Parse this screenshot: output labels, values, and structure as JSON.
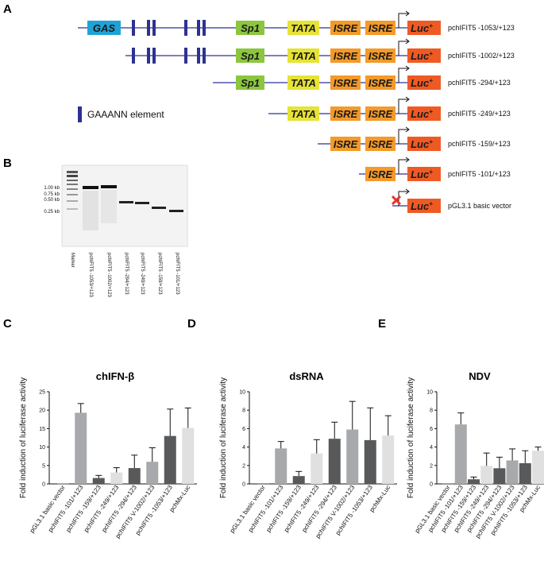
{
  "panel_labels": {
    "a": "A",
    "b": "B",
    "c": "C",
    "d": "D",
    "e": "E"
  },
  "elements": {
    "gas": "GAS",
    "sp1": "Sp1",
    "tata": "TATA",
    "isre": "ISRE",
    "luc": "Luc",
    "luc_sup": "+",
    "legend_text": "GAAANN element"
  },
  "colors": {
    "gas": "#1fa3d6",
    "sp1": "#8cc63f",
    "tata": "#e6e336",
    "isre": "#f39a2a",
    "luc": "#ef5a24",
    "line": "#2e3192",
    "gaaann": "#2e3192",
    "cross": "#e8332a",
    "bar_light": "#a7a9ac",
    "bar_dark": "#58595b",
    "bar_pale": "#e0e0e0"
  },
  "constructs": [
    {
      "name": "pchIFIT5 -1053/+123"
    },
    {
      "name": "pchIFIT5 -1002/+123"
    },
    {
      "name": "pchIFIT5 -294/+123"
    },
    {
      "name": "pchIFIT5 -249/+123"
    },
    {
      "name": "pchIFIT5 -159/+123"
    },
    {
      "name": "pchIFIT5 -101/+123"
    },
    {
      "name": "pGL3.1 basic vector"
    }
  ],
  "gel": {
    "markers": [
      "1.00 kb",
      "0.75 kb",
      "0.50 kb",
      "0.25 kb"
    ],
    "lanes": [
      "Marker",
      "pchIFIT5 -1053/+123",
      "pchIFIT5 -1002/+123",
      "pchIFIT5 -294/+123",
      "pchIFIT5 -249/+123",
      "pchIFIT5 -159/+123",
      "pchIFIT5 -101/+123"
    ]
  },
  "chart_data": [
    {
      "type": "bar",
      "title": "chIFN-β",
      "ylabel": "Fold induction of luciferase activity",
      "xlabel": "",
      "ylim": [
        0,
        25
      ],
      "yticks": [
        0,
        5,
        10,
        15,
        20,
        25
      ],
      "categories": [
        "pGL3.1 basic vector",
        "pchIFIT5 -101/+123",
        "pchIFIT5 -159/+123",
        "pchIFIT5 -249/+123",
        "pchIFIT5 -294/+123",
        "pchIFIT5 V-1002/+123",
        "pchIFIT5 -1053/+123",
        "pchMx-Luc"
      ],
      "values": [
        0.1,
        19.3,
        1.6,
        3.1,
        4.3,
        6.0,
        13.0,
        15.2
      ],
      "errors": [
        0.0,
        2.5,
        0.7,
        1.3,
        3.5,
        3.8,
        7.3,
        5.4
      ],
      "shades": [
        "dark",
        "light",
        "dark",
        "pale",
        "dark",
        "light",
        "dark",
        "pale"
      ]
    },
    {
      "type": "bar",
      "title": "dsRNA",
      "ylabel": "Fold induction of luciferase activity",
      "xlabel": "",
      "ylim": [
        0,
        10
      ],
      "yticks": [
        0,
        2,
        4,
        6,
        8,
        10
      ],
      "categories": [
        "pGL3.1 basic vector",
        "pchIFIT5 -101/+123",
        "pchIFIT5 -159/+123",
        "pchIFIT5 -249/+123",
        "pchIFIT5 -294/+123",
        "pchIFIT5 V-1002/+123",
        "pchIFIT5 -1053/+123",
        "pchMx-Luc"
      ],
      "values": [
        0.05,
        3.85,
        0.85,
        3.3,
        4.9,
        5.9,
        4.75,
        5.25
      ],
      "errors": [
        0.0,
        0.75,
        0.5,
        1.5,
        1.8,
        3.05,
        3.5,
        2.15
      ],
      "shades": [
        "dark",
        "light",
        "dark",
        "pale",
        "dark",
        "light",
        "dark",
        "pale"
      ]
    },
    {
      "type": "bar",
      "title": "NDV",
      "ylabel": "Fold induction of luciferase activity",
      "xlabel": "",
      "ylim": [
        0,
        10
      ],
      "yticks": [
        0,
        2,
        4,
        6,
        8,
        10
      ],
      "categories": [
        "pGL3.1 basic vector",
        "pchIFIT5 -101/+123",
        "pchIFIT5 -159/+123",
        "pchIFIT5 -249/+123",
        "pchIFIT5 -294/+123",
        "pchIFIT5 V-1002/+123",
        "pchIFIT5 -1053/+123",
        "pchMx-Luc"
      ],
      "values": [
        0.05,
        6.45,
        0.5,
        1.95,
        1.7,
        2.55,
        2.25,
        3.6
      ],
      "errors": [
        0.0,
        1.25,
        0.25,
        1.4,
        1.2,
        1.25,
        1.35,
        0.4
      ],
      "shades": [
        "dark",
        "light",
        "dark",
        "pale",
        "dark",
        "light",
        "dark",
        "pale"
      ]
    }
  ]
}
